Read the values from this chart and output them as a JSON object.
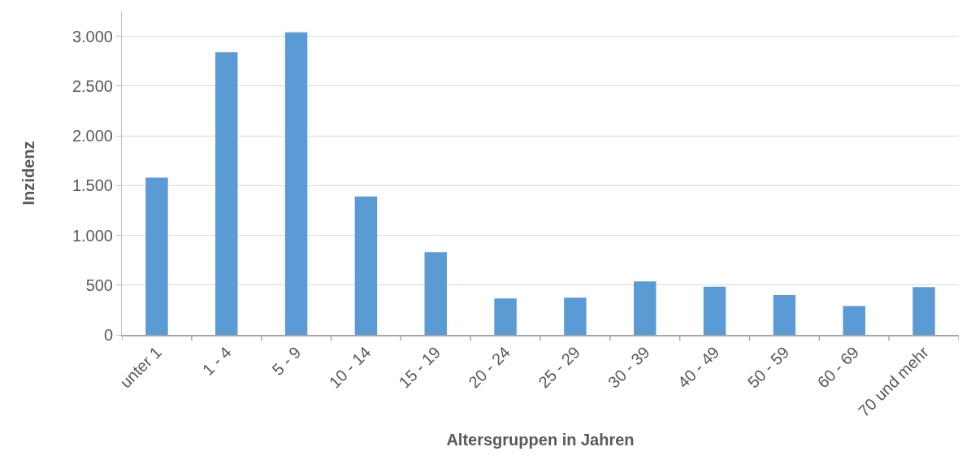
{
  "chart_data": {
    "type": "bar",
    "xlabel": "Altersgruppen in Jahren",
    "ylabel": "Inzidenz",
    "categories": [
      "unter 1",
      "1 - 4",
      "5 - 9",
      "10 - 14",
      "15 - 19",
      "20 - 24",
      "25 - 29",
      "30 - 39",
      "40 - 49",
      "50 - 59",
      "60 - 69",
      "70 und mehr"
    ],
    "values": [
      1580,
      2840,
      3040,
      1390,
      830,
      365,
      373,
      537,
      483,
      400,
      290,
      480
    ],
    "color": "#5b9bd5",
    "ylim": [
      0,
      3250
    ],
    "yticks": [
      0,
      500,
      {
        "value": 1000,
        "label": "1.000"
      },
      {
        "value": 1500,
        "label": "1.500"
      },
      {
        "value": 2000,
        "label": "2.000"
      },
      {
        "value": 2500,
        "label": "2.500"
      },
      {
        "value": 3000,
        "label": "3.000"
      }
    ],
    "grid": "y",
    "legend": false
  }
}
